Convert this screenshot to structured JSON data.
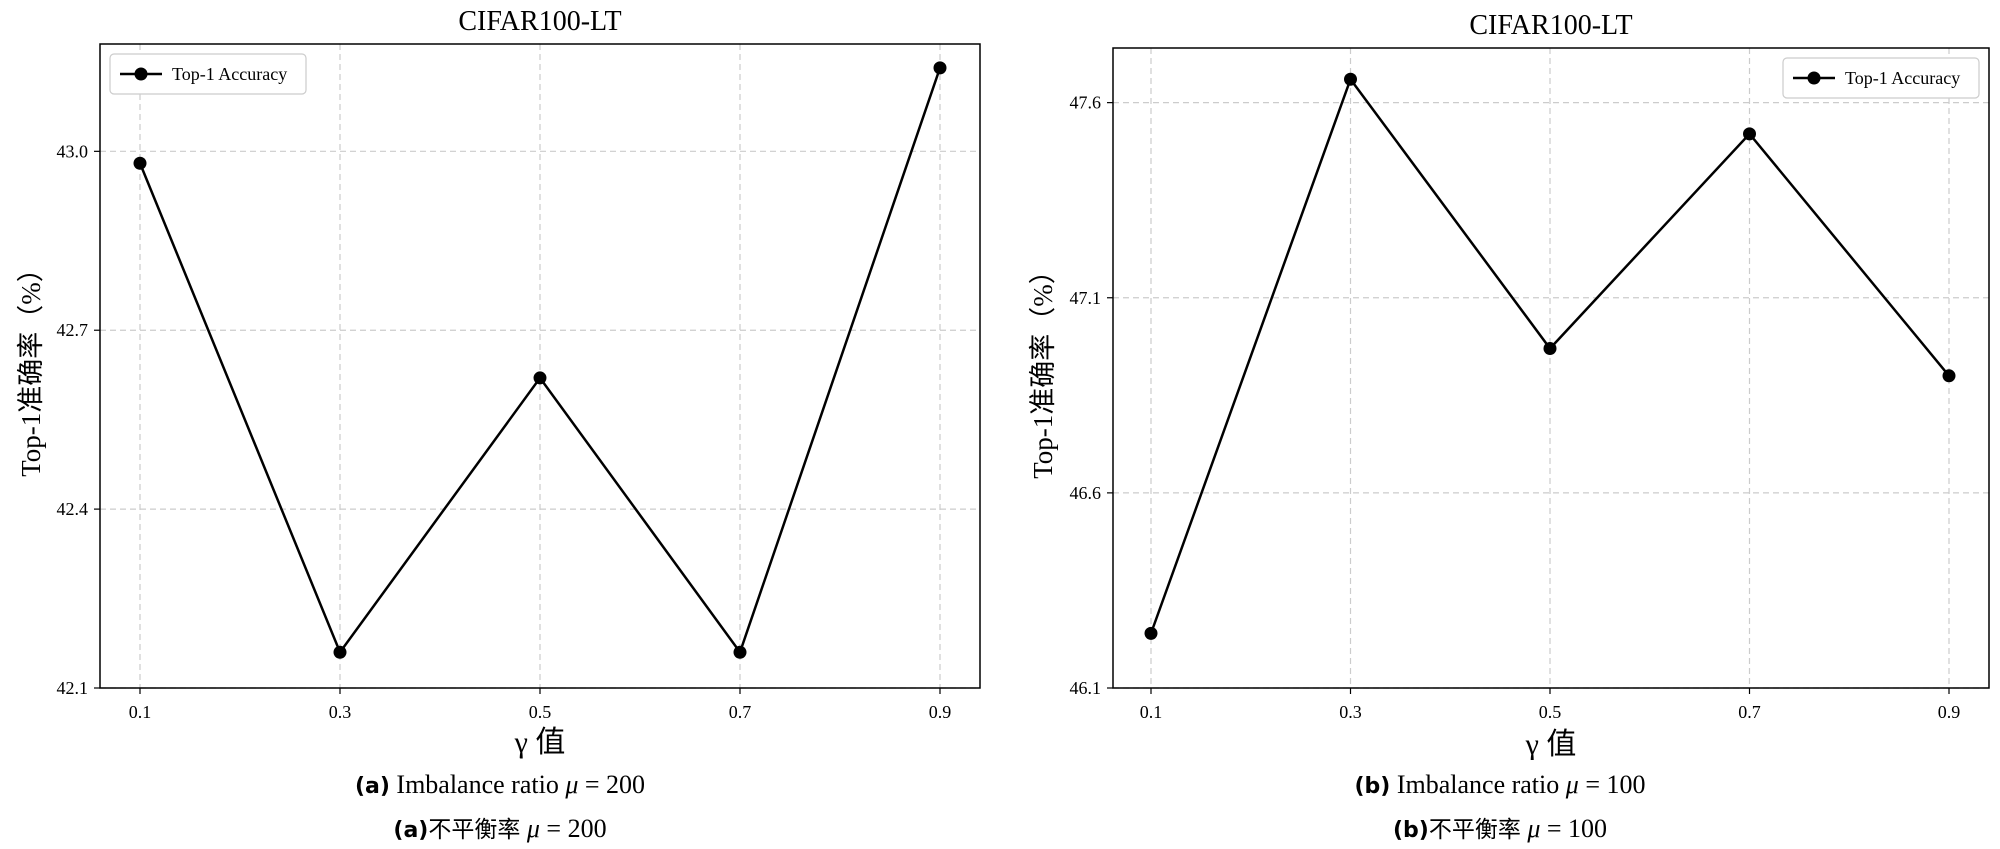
{
  "chart_data": [
    {
      "type": "line",
      "title": "CIFAR100-LT",
      "xlabel": "γ 值",
      "ylabel": "Top-1准确率（%）",
      "x": [
        0.1,
        0.3,
        0.5,
        0.7,
        0.9
      ],
      "x_tick_labels": [
        "0.1",
        "0.3",
        "0.5",
        "0.7",
        "0.9"
      ],
      "series": [
        {
          "name": "Top-1 Accuracy",
          "values": [
            42.98,
            42.16,
            42.62,
            42.16,
            43.14
          ],
          "color": "#000000"
        }
      ],
      "ylim": [
        42.1,
        43.18
      ],
      "y_ticks": [
        42.1,
        42.4,
        42.7,
        43.0
      ],
      "y_tick_labels": [
        "42.1",
        "42.4",
        "42.7",
        "43.0"
      ],
      "grid": true,
      "legend_position": "top-left",
      "caption": {
        "label": "(a)",
        "en_text": "Imbalance ratio",
        "zh_text": "不平衡率",
        "mu": "μ",
        "eq": "= 200"
      }
    },
    {
      "type": "line",
      "title": "CIFAR100-LT",
      "xlabel": "γ 值",
      "ylabel": "Top-1准确率（%）",
      "x": [
        0.1,
        0.3,
        0.5,
        0.7,
        0.9
      ],
      "x_tick_labels": [
        "0.1",
        "0.3",
        "0.5",
        "0.7",
        "0.9"
      ],
      "series": [
        {
          "name": "Top-1 Accuracy",
          "values": [
            46.24,
            47.66,
            46.97,
            47.52,
            46.9
          ],
          "color": "#000000"
        }
      ],
      "ylim": [
        46.1,
        47.74
      ],
      "y_ticks": [
        46.1,
        46.6,
        47.1,
        47.6
      ],
      "y_tick_labels": [
        "46.1",
        "46.6",
        "47.1",
        "47.6"
      ],
      "grid": true,
      "legend_position": "top-right",
      "caption": {
        "label": "(b)",
        "en_text": "Imbalance ratio",
        "zh_text": "不平衡率",
        "mu": "μ",
        "eq": "= 100"
      }
    }
  ]
}
